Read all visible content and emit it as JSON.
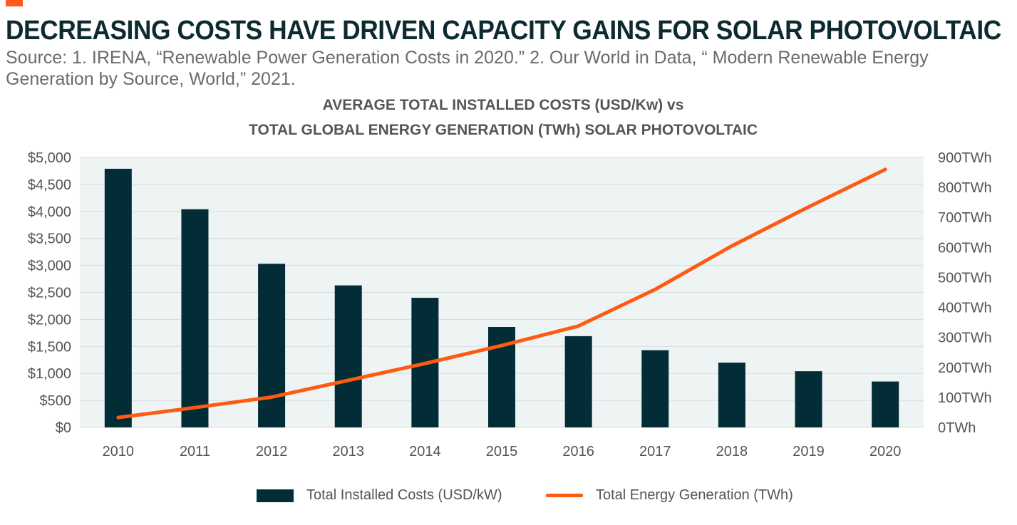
{
  "header": {
    "title": "DECREASING COSTS HAVE DRIVEN CAPACITY GAINS FOR SOLAR PHOTOVOLTAIC",
    "source": "Source: 1. IRENA, “Renewable Power Generation Costs in 2020.” 2. Our World in Data, “ Modern Renewable Energy Generation by Source, World,” 2021.",
    "accent_color": "#ff5a1a"
  },
  "chart_data": {
    "type": "bar",
    "title_line1": "AVERAGE TOTAL INSTALLED COSTS (USD/Kw) vs",
    "title_line2": "TOTAL GLOBAL ENERGY GENERATION (TWh) SOLAR PHOTOVOLTAIC",
    "categories": [
      "2010",
      "2011",
      "2012",
      "2013",
      "2014",
      "2015",
      "2016",
      "2017",
      "2018",
      "2019",
      "2020"
    ],
    "series": [
      {
        "name": "Total Installed Costs (USD/kW)",
        "type": "bar",
        "axis": "left",
        "color": "#022c36",
        "values": [
          4790,
          4040,
          3030,
          2630,
          2400,
          1860,
          1690,
          1430,
          1200,
          1040,
          850
        ]
      },
      {
        "name": "Total Energy Generation (TWh)",
        "type": "line",
        "axis": "right",
        "color": "#ff5a12",
        "values": [
          33,
          66,
          101,
          157,
          213,
          273,
          338,
          460,
          605,
          735,
          860
        ]
      }
    ],
    "y_left": {
      "ylim": [
        0,
        5000
      ],
      "ticks": [
        "$0",
        "$500",
        "$1,000",
        "$1,500",
        "$2,000",
        "$2,500",
        "$3,000",
        "$3,500",
        "$4,000",
        "$4,500",
        "$5,000"
      ]
    },
    "y_right": {
      "ylim": [
        0,
        900
      ],
      "ticks": [
        "0TWh",
        "100TWh",
        "200TWh",
        "300TWh",
        "400TWh",
        "500TWh",
        "600TWh",
        "700TWh",
        "800TWh",
        "900TWh"
      ]
    },
    "grid": true,
    "plot_background": "#eef3f3",
    "legend_position": "bottom"
  }
}
